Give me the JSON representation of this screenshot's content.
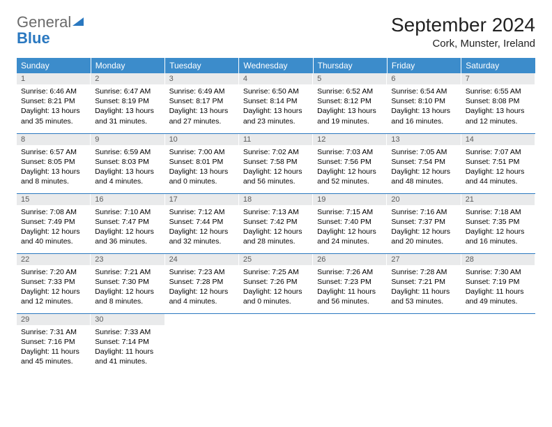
{
  "logo": {
    "text_gray": "General",
    "text_blue": "Blue",
    "sail_color": "#2a78c0"
  },
  "title": {
    "month": "September 2024",
    "location": "Cork, Munster, Ireland"
  },
  "weekdays": [
    "Sunday",
    "Monday",
    "Tuesday",
    "Wednesday",
    "Thursday",
    "Friday",
    "Saturday"
  ],
  "colors": {
    "header_bg": "#3c8ccb",
    "header_fg": "#ffffff",
    "daynum_bg": "#e9eaeb",
    "daynum_fg": "#5a5a5a",
    "rule": "#2a78c0"
  },
  "days": [
    {
      "n": 1,
      "sunrise": "6:46 AM",
      "sunset": "8:21 PM",
      "day_h": 13,
      "day_m": 35
    },
    {
      "n": 2,
      "sunrise": "6:47 AM",
      "sunset": "8:19 PM",
      "day_h": 13,
      "day_m": 31
    },
    {
      "n": 3,
      "sunrise": "6:49 AM",
      "sunset": "8:17 PM",
      "day_h": 13,
      "day_m": 27
    },
    {
      "n": 4,
      "sunrise": "6:50 AM",
      "sunset": "8:14 PM",
      "day_h": 13,
      "day_m": 23
    },
    {
      "n": 5,
      "sunrise": "6:52 AM",
      "sunset": "8:12 PM",
      "day_h": 13,
      "day_m": 19
    },
    {
      "n": 6,
      "sunrise": "6:54 AM",
      "sunset": "8:10 PM",
      "day_h": 13,
      "day_m": 16
    },
    {
      "n": 7,
      "sunrise": "6:55 AM",
      "sunset": "8:08 PM",
      "day_h": 13,
      "day_m": 12
    },
    {
      "n": 8,
      "sunrise": "6:57 AM",
      "sunset": "8:05 PM",
      "day_h": 13,
      "day_m": 8
    },
    {
      "n": 9,
      "sunrise": "6:59 AM",
      "sunset": "8:03 PM",
      "day_h": 13,
      "day_m": 4
    },
    {
      "n": 10,
      "sunrise": "7:00 AM",
      "sunset": "8:01 PM",
      "day_h": 13,
      "day_m": 0
    },
    {
      "n": 11,
      "sunrise": "7:02 AM",
      "sunset": "7:58 PM",
      "day_h": 12,
      "day_m": 56
    },
    {
      "n": 12,
      "sunrise": "7:03 AM",
      "sunset": "7:56 PM",
      "day_h": 12,
      "day_m": 52
    },
    {
      "n": 13,
      "sunrise": "7:05 AM",
      "sunset": "7:54 PM",
      "day_h": 12,
      "day_m": 48
    },
    {
      "n": 14,
      "sunrise": "7:07 AM",
      "sunset": "7:51 PM",
      "day_h": 12,
      "day_m": 44
    },
    {
      "n": 15,
      "sunrise": "7:08 AM",
      "sunset": "7:49 PM",
      "day_h": 12,
      "day_m": 40
    },
    {
      "n": 16,
      "sunrise": "7:10 AM",
      "sunset": "7:47 PM",
      "day_h": 12,
      "day_m": 36
    },
    {
      "n": 17,
      "sunrise": "7:12 AM",
      "sunset": "7:44 PM",
      "day_h": 12,
      "day_m": 32
    },
    {
      "n": 18,
      "sunrise": "7:13 AM",
      "sunset": "7:42 PM",
      "day_h": 12,
      "day_m": 28
    },
    {
      "n": 19,
      "sunrise": "7:15 AM",
      "sunset": "7:40 PM",
      "day_h": 12,
      "day_m": 24
    },
    {
      "n": 20,
      "sunrise": "7:16 AM",
      "sunset": "7:37 PM",
      "day_h": 12,
      "day_m": 20
    },
    {
      "n": 21,
      "sunrise": "7:18 AM",
      "sunset": "7:35 PM",
      "day_h": 12,
      "day_m": 16
    },
    {
      "n": 22,
      "sunrise": "7:20 AM",
      "sunset": "7:33 PM",
      "day_h": 12,
      "day_m": 12
    },
    {
      "n": 23,
      "sunrise": "7:21 AM",
      "sunset": "7:30 PM",
      "day_h": 12,
      "day_m": 8
    },
    {
      "n": 24,
      "sunrise": "7:23 AM",
      "sunset": "7:28 PM",
      "day_h": 12,
      "day_m": 4
    },
    {
      "n": 25,
      "sunrise": "7:25 AM",
      "sunset": "7:26 PM",
      "day_h": 12,
      "day_m": 0
    },
    {
      "n": 26,
      "sunrise": "7:26 AM",
      "sunset": "7:23 PM",
      "day_h": 11,
      "day_m": 56
    },
    {
      "n": 27,
      "sunrise": "7:28 AM",
      "sunset": "7:21 PM",
      "day_h": 11,
      "day_m": 53
    },
    {
      "n": 28,
      "sunrise": "7:30 AM",
      "sunset": "7:19 PM",
      "day_h": 11,
      "day_m": 49
    },
    {
      "n": 29,
      "sunrise": "7:31 AM",
      "sunset": "7:16 PM",
      "day_h": 11,
      "day_m": 45
    },
    {
      "n": 30,
      "sunrise": "7:33 AM",
      "sunset": "7:14 PM",
      "day_h": 11,
      "day_m": 41
    }
  ],
  "labels": {
    "sunrise": "Sunrise:",
    "sunset": "Sunset:",
    "daylight": "Daylight:",
    "hours": "hours",
    "and": "and",
    "minutes": "minutes."
  }
}
